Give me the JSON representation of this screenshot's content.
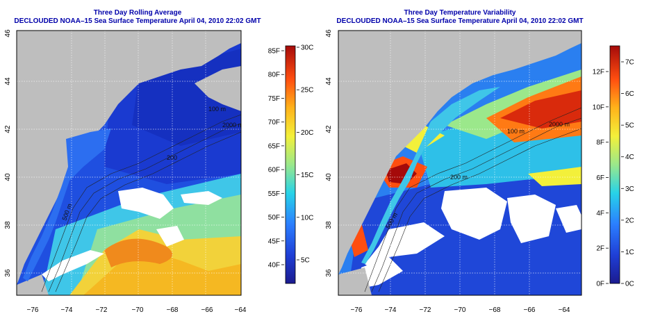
{
  "left_panel": {
    "title_line1": "Three Day Rolling Average",
    "title_line2": "DECLOUDED NOAA–15 Sea Surface Temperature April 04, 2010 22:02 GMT",
    "lon_ticks": [
      "−76",
      "−74",
      "−72",
      "−70",
      "−68",
      "−66",
      "−64"
    ],
    "lat_ticks": [
      "46",
      "44",
      "42",
      "40",
      "38",
      "36"
    ],
    "contour_labels": [
      "100 m",
      "2000 m",
      "200",
      "500 m"
    ],
    "colorbar": {
      "fahrenheit_ticks": [
        "85F",
        "80F",
        "75F",
        "70F",
        "65F",
        "60F",
        "55F",
        "50F",
        "45F",
        "40F"
      ],
      "celsius_ticks": [
        "30C",
        "25C",
        "20C",
        "15C",
        "10C",
        "5C"
      ]
    }
  },
  "right_panel": {
    "title_line1": "Three Day Temperature Variability",
    "title_line2": "DECLOUDED NOAA–15 Sea Surface Temperature April 04, 2010 22:02 GMT",
    "lon_ticks": [
      "−76",
      "−74",
      "−72",
      "−70",
      "−68",
      "−66",
      "−64"
    ],
    "lat_ticks": [
      "46",
      "44",
      "42",
      "40",
      "38",
      "36"
    ],
    "contour_labels": [
      "100 m",
      "2000 m",
      "200 m",
      "500 m"
    ],
    "colorbar": {
      "fahrenheit_ticks": [
        "12F",
        "10F",
        "8F",
        "6F",
        "4F",
        "2F",
        "0F"
      ],
      "celsius_ticks": [
        "7C",
        "6C",
        "5C",
        "4C",
        "3C",
        "2C",
        "1C",
        "0C"
      ]
    }
  },
  "colors": {
    "title": "#0000aa",
    "land": "#bebebe",
    "cloud": "#ffffff"
  }
}
